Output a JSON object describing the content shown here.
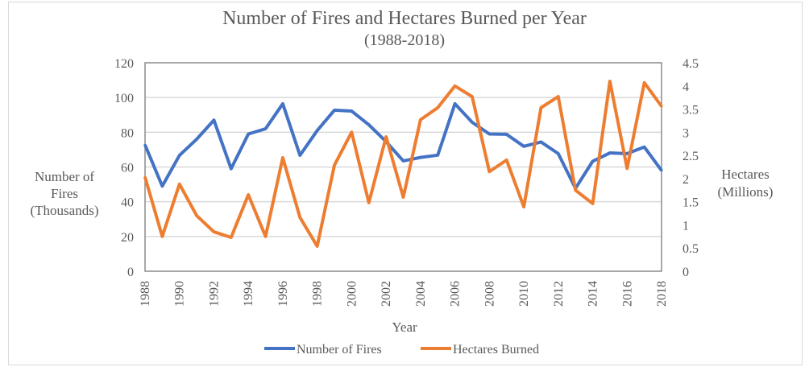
{
  "chart_data": {
    "type": "line",
    "title": "Number of Fires and Hectares Burned per Year",
    "subtitle": "(1988-2018)",
    "xlabel": "Year",
    "ylabel_left": [
      "Number of",
      "Fires",
      "(Thousands)"
    ],
    "ylabel_right": [
      "Hectares",
      "(Millions)"
    ],
    "ylim_left": [
      0,
      120
    ],
    "ylim_right": [
      0,
      4.5
    ],
    "yticks_left": [
      "0",
      "20",
      "40",
      "60",
      "80",
      "100",
      "120"
    ],
    "yticks_right": [
      "0",
      "0.5",
      "1",
      "1.5",
      "2",
      "2.5",
      "3",
      "3.5",
      "4",
      "4.5"
    ],
    "x": [
      1988,
      1989,
      1990,
      1991,
      1992,
      1993,
      1994,
      1995,
      1996,
      1997,
      1998,
      1999,
      2000,
      2001,
      2002,
      2003,
      2004,
      2005,
      2006,
      2007,
      2008,
      2009,
      2010,
      2011,
      2012,
      2013,
      2014,
      2015,
      2016,
      2017,
      2018
    ],
    "xticks": [
      "1988",
      "1990",
      "1992",
      "1994",
      "1996",
      "1998",
      "2000",
      "2002",
      "2004",
      "2006",
      "2008",
      "2010",
      "2012",
      "2014",
      "2016",
      "2018"
    ],
    "grid": true,
    "legend": "bottom",
    "series": [
      {
        "name": "Number of Fires",
        "axis": "left",
        "color": "#4472C4",
        "values": [
          72.7,
          49,
          66.7,
          76,
          87,
          59,
          79,
          82,
          96.4,
          66.7,
          81,
          92.7,
          92.2,
          84.3,
          74.6,
          63.5,
          65.5,
          66.8,
          96.4,
          85.7,
          79,
          78.8,
          71.9,
          74.4,
          67.7,
          47.7,
          63.3,
          68.1,
          67.7,
          71.5,
          58
        ]
      },
      {
        "name": "Hectares Burned",
        "axis": "right",
        "color": "#ED7D31",
        "values": [
          2.03,
          0.75,
          1.88,
          1.2,
          0.85,
          0.73,
          1.65,
          0.75,
          2.45,
          1.16,
          0.54,
          2.29,
          3.0,
          1.48,
          2.9,
          1.6,
          3.27,
          3.53,
          4.0,
          3.77,
          2.15,
          2.4,
          1.39,
          3.53,
          3.77,
          1.75,
          1.46,
          4.1,
          2.22,
          4.07,
          3.56
        ]
      }
    ]
  }
}
